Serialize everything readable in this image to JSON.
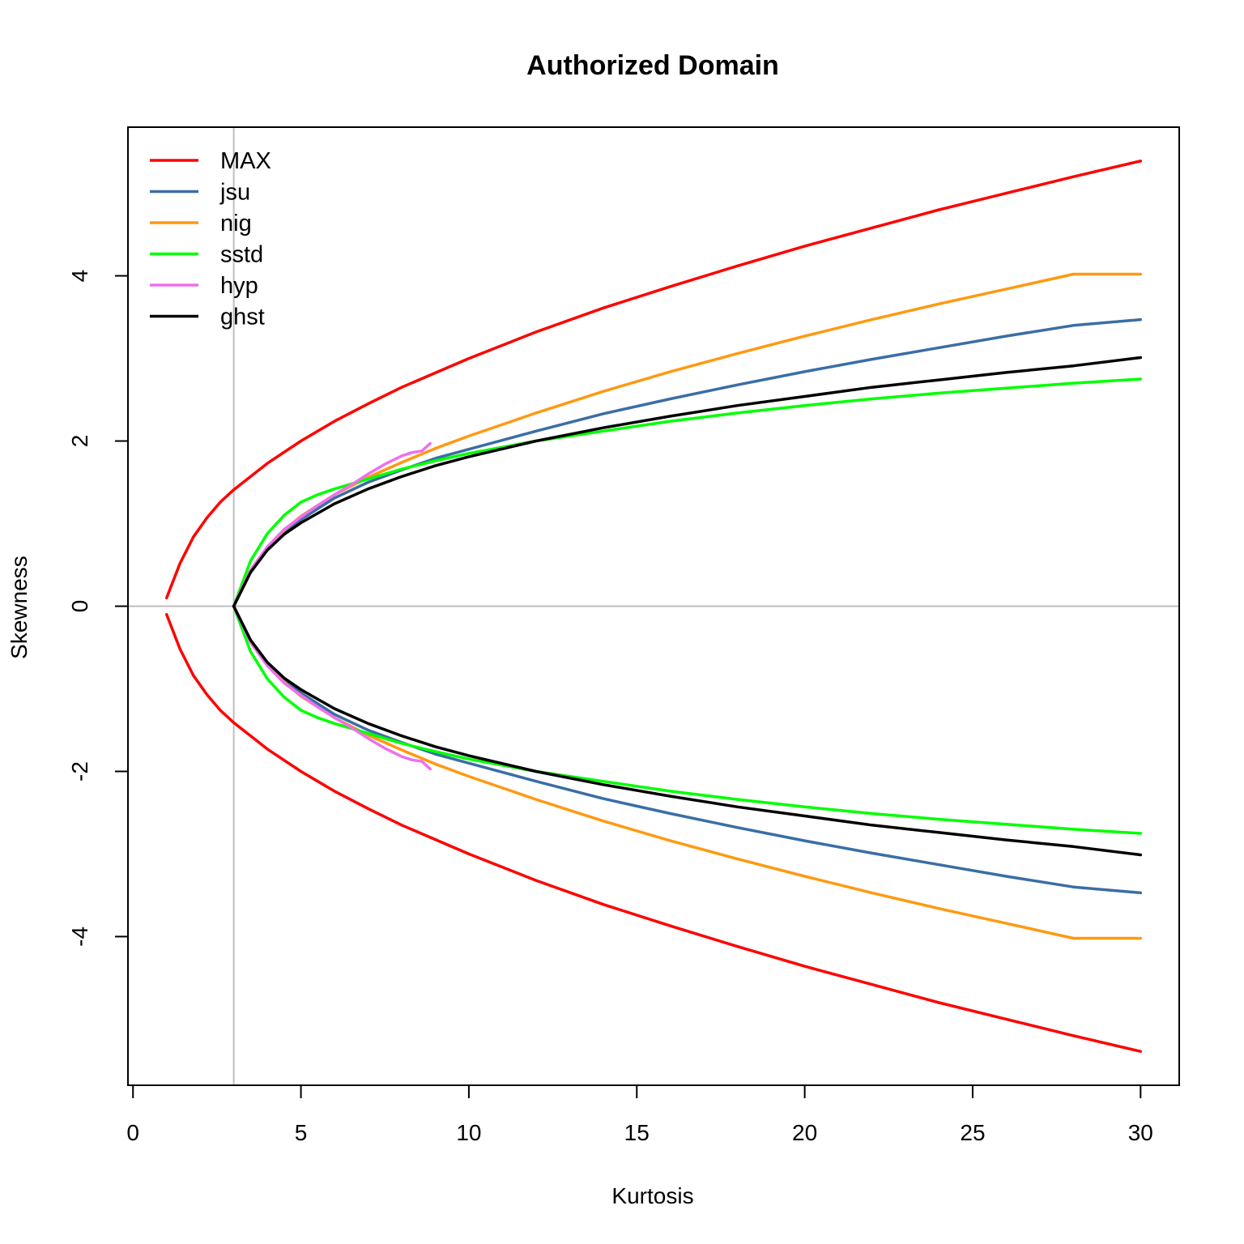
{
  "chart_data": {
    "type": "line",
    "title": "Authorized Domain",
    "xlabel": "Kurtosis",
    "ylabel": "Skewness",
    "xlim": [
      -0.15,
      31.15
    ],
    "ylim": [
      -5.8,
      5.8
    ],
    "xticks": [
      0,
      5,
      10,
      15,
      20,
      25,
      30
    ],
    "yticks": [
      -4,
      -2,
      0,
      2,
      4
    ],
    "xtick_labels": [
      "0",
      "5",
      "10",
      "15",
      "20",
      "25",
      "30"
    ],
    "ytick_labels": [
      "-4",
      "-2",
      "0",
      "2",
      "4"
    ],
    "reference_lines": {
      "vertical_x": 3,
      "horizontal_y": 0,
      "color": "#bebebe"
    },
    "grid": false,
    "legend_position": "top-left",
    "series": [
      {
        "name": "MAX",
        "color": "#ff0000",
        "x": [
          1.0,
          1.4,
          1.8,
          2.2,
          2.6,
          3.0,
          4.0,
          5.0,
          6.0,
          7.0,
          8.0,
          10.0,
          12.0,
          14.0,
          16.0,
          18.0,
          20.0,
          22.0,
          24.0,
          26.0,
          28.0,
          30.0
        ],
        "y": [
          0.1,
          0.52,
          0.84,
          1.07,
          1.26,
          1.41,
          1.73,
          2.0,
          2.24,
          2.45,
          2.65,
          3.0,
          3.32,
          3.61,
          3.87,
          4.12,
          4.36,
          4.58,
          4.8,
          5.0,
          5.2,
          5.39
        ]
      },
      {
        "name": "jsu",
        "color": "#3a6ea5",
        "x": [
          3.0,
          3.5,
          4.0,
          4.5,
          5.0,
          6.0,
          7.0,
          8.0,
          9.0,
          10.0,
          12.0,
          14.0,
          16.0,
          18.0,
          20.0,
          22.0,
          24.0,
          26.0,
          28.0,
          30.0
        ],
        "y": [
          0.0,
          0.42,
          0.7,
          0.9,
          1.05,
          1.31,
          1.5,
          1.65,
          1.79,
          1.9,
          2.12,
          2.33,
          2.51,
          2.68,
          2.84,
          2.99,
          3.13,
          3.27,
          3.4,
          3.47
        ]
      },
      {
        "name": "nig",
        "color": "#ff9912",
        "x": [
          3.0,
          3.5,
          4.0,
          4.5,
          5.0,
          6.0,
          7.0,
          8.0,
          9.0,
          10.0,
          12.0,
          14.0,
          16.0,
          18.0,
          20.0,
          22.0,
          24.0,
          26.0,
          28.0,
          30.0
        ],
        "y": [
          0.0,
          0.42,
          0.71,
          0.92,
          1.09,
          1.35,
          1.56,
          1.74,
          1.91,
          2.06,
          2.34,
          2.6,
          2.84,
          3.06,
          3.27,
          3.47,
          3.66,
          3.84,
          4.02,
          4.02
        ]
      },
      {
        "name": "sstd",
        "color": "#00ff00",
        "x": [
          3.0,
          3.5,
          4.0,
          4.5,
          5.0,
          5.5,
          6.0,
          7.0,
          8.0,
          9.0,
          10.0,
          12.0,
          14.0,
          16.0,
          18.0,
          20.0,
          22.0,
          24.0,
          26.0,
          28.0,
          30.0
        ],
        "y": [
          0.0,
          0.55,
          0.88,
          1.1,
          1.26,
          1.35,
          1.42,
          1.54,
          1.66,
          1.76,
          1.85,
          2.0,
          2.12,
          2.24,
          2.34,
          2.43,
          2.51,
          2.58,
          2.64,
          2.7,
          2.75
        ]
      },
      {
        "name": "hyp",
        "color": "#ee6fee",
        "x": [
          3.0,
          3.5,
          4.0,
          4.5,
          5.0,
          5.5,
          6.0,
          6.5,
          7.0,
          7.5,
          8.0,
          8.3,
          8.6,
          8.85
        ],
        "y": [
          0.0,
          0.44,
          0.72,
          0.93,
          1.08,
          1.22,
          1.35,
          1.47,
          1.6,
          1.72,
          1.82,
          1.86,
          1.88,
          1.97
        ]
      },
      {
        "name": "ghst",
        "color": "#000000",
        "x": [
          3.0,
          3.5,
          4.0,
          4.5,
          5.0,
          6.0,
          7.0,
          8.0,
          9.0,
          10.0,
          12.0,
          14.0,
          16.0,
          18.0,
          20.0,
          22.0,
          24.0,
          26.0,
          28.0,
          30.0
        ],
        "y": [
          0.0,
          0.41,
          0.68,
          0.87,
          1.01,
          1.24,
          1.42,
          1.57,
          1.7,
          1.81,
          2.0,
          2.16,
          2.3,
          2.43,
          2.54,
          2.65,
          2.74,
          2.83,
          2.91,
          3.01
        ]
      }
    ]
  }
}
